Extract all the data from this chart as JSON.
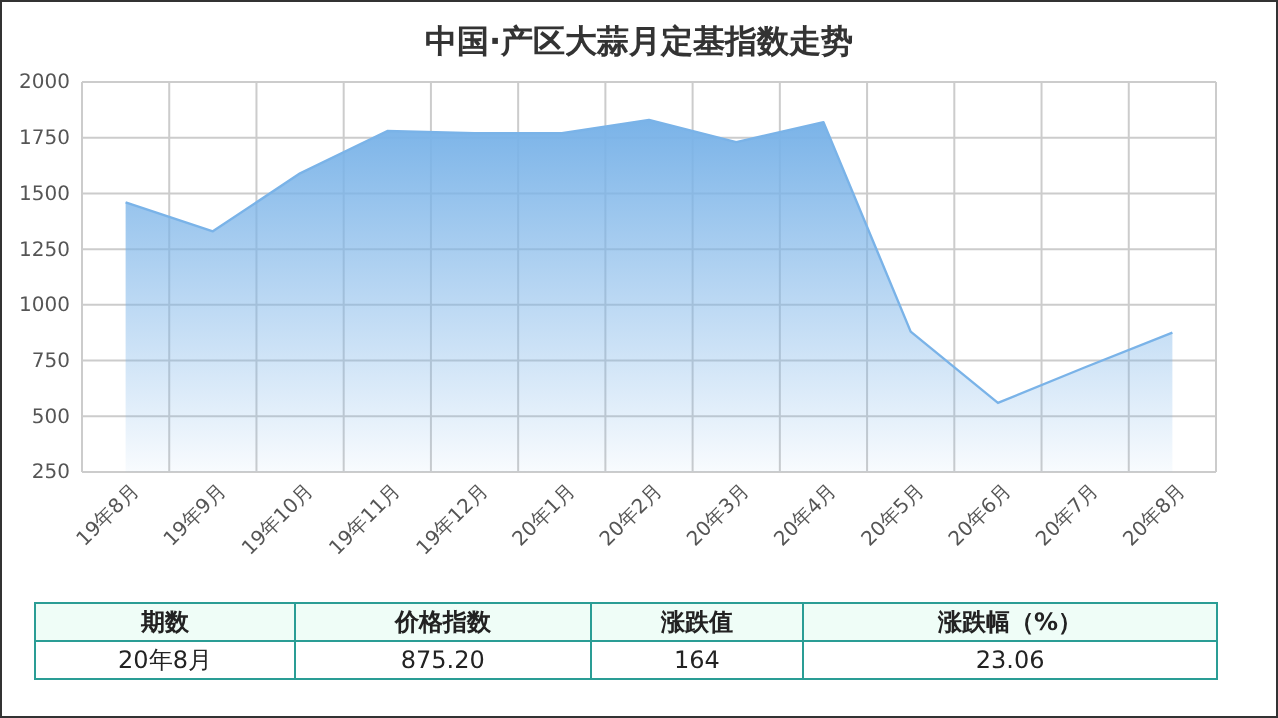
{
  "chart_data": {
    "type": "area",
    "title": "中国·产区大蒜月定基指数走势",
    "categories": [
      "19年8月",
      "19年9月",
      "19年10月",
      "19年11月",
      "19年12月",
      "20年1月",
      "20年2月",
      "20年3月",
      "20年4月",
      "20年5月",
      "20年6月",
      "20年7月",
      "20年8月"
    ],
    "series": [
      {
        "color": "#7ab3e8",
        "values": [
          1460,
          1330,
          1590,
          1780,
          1770,
          1770,
          1830,
          1730,
          1820,
          880,
          560,
          720,
          875.2
        ]
      }
    ],
    "ylim": [
      250,
      2000
    ],
    "yticks": [
      250,
      500,
      750,
      1000,
      1250,
      1500,
      1750,
      2000
    ],
    "grid": true,
    "annotations": [
      "期数",
      "价格指数",
      "涨跌值",
      "涨跌幅（%）",
      "20年8月",
      "875.20",
      "164",
      "23.06"
    ]
  }
}
